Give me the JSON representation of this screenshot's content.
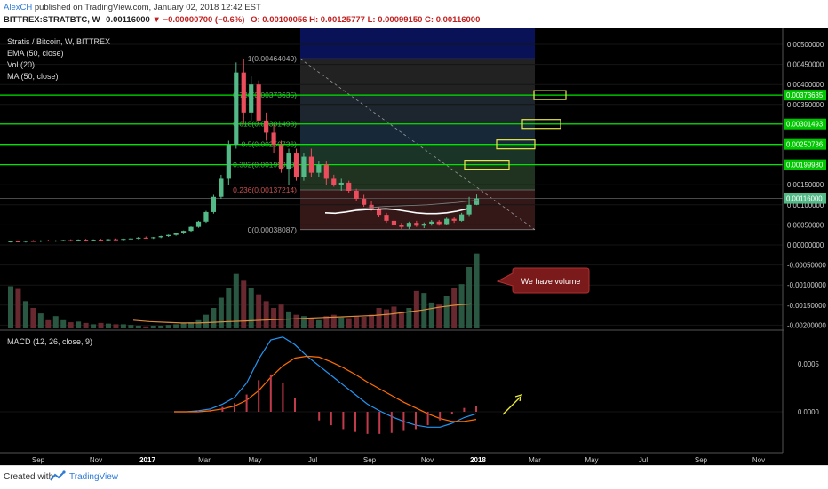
{
  "header": {
    "author": "AlexCH",
    "published": "published on TradingView.com, January 02, 2018 12:42 EST",
    "symbol": "BITTREX:STRATBTC, W",
    "last": "0.00116000",
    "change": "▼ −0.00000700 (−0.6%)",
    "ohlc": "O: 0.00100056  H: 0.00125777  L: 0.00099150  C: 0.00116000"
  },
  "legend": [
    "Stratis / Bitcoin, W, BITTREX",
    "EMA (50, close)",
    "Vol (20)",
    "MA (50, close)"
  ],
  "annotation": {
    "callout": "We have volume"
  },
  "footer": {
    "created_with": "Created with",
    "brand": "TradingView"
  },
  "colors": {
    "background": "#000000",
    "up": "#53b987",
    "down": "#eb4d5c",
    "fib_line": "#00e400",
    "fib_box": "#e8e84c",
    "macd": "#2196f3",
    "signal": "#ff6d00",
    "callout": "#7a1a1a"
  },
  "chart_data": [
    {
      "type": "candlestick",
      "title": "Stratis / Bitcoin, W, BITTREX",
      "x_ticks": [
        "Sep",
        "Nov",
        "2017",
        "Mar",
        "May",
        "Jul",
        "Sep",
        "Nov",
        "2018",
        "Mar",
        "May",
        "Jul",
        "Sep",
        "Nov"
      ],
      "y_ticks": [
        "0.00500000",
        "0.00450000",
        "0.00400000",
        "0.00350000",
        "0.00300000",
        "0.00250000",
        "0.00200000",
        "0.00150000",
        "0.00100000",
        "0.00050000",
        "0.00000000",
        "-0.00050000",
        "-0.00100000",
        "-0.00150000",
        "-0.00200000"
      ],
      "ylim": [
        -0.0021,
        0.0052
      ],
      "price_markers": [
        {
          "label": "0.00373635",
          "value": 0.00373635
        },
        {
          "label": "0.00301493",
          "value": 0.00301493
        },
        {
          "label": "0.00250736",
          "value": 0.00250736
        },
        {
          "label": "0.00199980",
          "value": 0.0019998
        },
        {
          "label": "0.00116000",
          "value": 0.00116
        }
      ],
      "fibonacci_levels": [
        {
          "label": "1(0.00464049)",
          "ratio": 1,
          "value": 0.00464049
        },
        {
          "label": "0.786(0.00373635)",
          "ratio": 0.786,
          "value": 0.00373635
        },
        {
          "label": "0.618(0.00301493)",
          "ratio": 0.618,
          "value": 0.00301493
        },
        {
          "label": "0.5(0.00250736)",
          "ratio": 0.5,
          "value": 0.00250736
        },
        {
          "label": "0.382(0.00199980)",
          "ratio": 0.382,
          "value": 0.0019998
        },
        {
          "label": "0.236(0.00137214)",
          "ratio": 0.236,
          "value": 0.00137214
        },
        {
          "label": "0(0.00038087)",
          "ratio": 0,
          "value": 0.00038087
        }
      ],
      "candles": [
        {
          "o": 8e-05,
          "h": 0.0001,
          "l": 6e-05,
          "c": 9e-05
        },
        {
          "o": 9e-05,
          "h": 0.00011,
          "l": 7e-05,
          "c": 8e-05
        },
        {
          "o": 8e-05,
          "h": 0.0001,
          "l": 6e-05,
          "c": 0.0001
        },
        {
          "o": 0.0001,
          "h": 0.00012,
          "l": 8e-05,
          "c": 9e-05
        },
        {
          "o": 9e-05,
          "h": 0.00012,
          "l": 7e-05,
          "c": 0.00011
        },
        {
          "o": 0.00011,
          "h": 0.00013,
          "l": 9e-05,
          "c": 0.0001
        },
        {
          "o": 0.0001,
          "h": 0.00012,
          "l": 8e-05,
          "c": 0.00011
        },
        {
          "o": 0.00011,
          "h": 0.00013,
          "l": 9e-05,
          "c": 0.00012
        },
        {
          "o": 0.00012,
          "h": 0.00014,
          "l": 0.0001,
          "c": 0.00011
        },
        {
          "o": 0.00011,
          "h": 0.00014,
          "l": 9e-05,
          "c": 0.00013
        },
        {
          "o": 0.00013,
          "h": 0.00015,
          "l": 0.00011,
          "c": 0.00012
        },
        {
          "o": 0.00012,
          "h": 0.00014,
          "l": 0.0001,
          "c": 0.00013
        },
        {
          "o": 0.00013,
          "h": 0.00015,
          "l": 0.00011,
          "c": 0.00012
        },
        {
          "o": 0.00012,
          "h": 0.00015,
          "l": 0.0001,
          "c": 0.00014
        },
        {
          "o": 0.00014,
          "h": 0.00016,
          "l": 0.00012,
          "c": 0.00013
        },
        {
          "o": 0.00013,
          "h": 0.00016,
          "l": 0.00011,
          "c": 0.00015
        },
        {
          "o": 0.00015,
          "h": 0.00018,
          "l": 0.00013,
          "c": 0.00016
        },
        {
          "o": 0.00016,
          "h": 0.0002,
          "l": 0.00014,
          "c": 0.00018
        },
        {
          "o": 0.00018,
          "h": 0.00021,
          "l": 0.00016,
          "c": 0.00017
        },
        {
          "o": 0.00017,
          "h": 0.0002,
          "l": 0.00015,
          "c": 0.00019
        },
        {
          "o": 0.00019,
          "h": 0.00023,
          "l": 0.00017,
          "c": 0.00022
        },
        {
          "o": 0.00022,
          "h": 0.00026,
          "l": 0.0002,
          "c": 0.00025
        },
        {
          "o": 0.00025,
          "h": 0.0003,
          "l": 0.00023,
          "c": 0.00029
        },
        {
          "o": 0.00029,
          "h": 0.00036,
          "l": 0.00027,
          "c": 0.00035
        },
        {
          "o": 0.00035,
          "h": 0.00046,
          "l": 0.00033,
          "c": 0.00045
        },
        {
          "o": 0.00045,
          "h": 0.0006,
          "l": 0.00043,
          "c": 0.00058
        },
        {
          "o": 0.00058,
          "h": 0.00085,
          "l": 0.00055,
          "c": 0.00082
        },
        {
          "o": 0.00082,
          "h": 0.00125,
          "l": 0.00078,
          "c": 0.0012
        },
        {
          "o": 0.0012,
          "h": 0.00175,
          "l": 0.00115,
          "c": 0.00165
        },
        {
          "o": 0.00165,
          "h": 0.0026,
          "l": 0.0015,
          "c": 0.0025
        },
        {
          "o": 0.0025,
          "h": 0.00455,
          "l": 0.0024,
          "c": 0.0043
        },
        {
          "o": 0.0043,
          "h": 0.00464,
          "l": 0.003,
          "c": 0.0033
        },
        {
          "o": 0.0033,
          "h": 0.0042,
          "l": 0.0031,
          "c": 0.004
        },
        {
          "o": 0.004,
          "h": 0.0041,
          "l": 0.003,
          "c": 0.0031
        },
        {
          "o": 0.0031,
          "h": 0.0033,
          "l": 0.0026,
          "c": 0.0028
        },
        {
          "o": 0.0028,
          "h": 0.003,
          "l": 0.0023,
          "c": 0.0025
        },
        {
          "o": 0.0025,
          "h": 0.0026,
          "l": 0.0018,
          "c": 0.0019
        },
        {
          "o": 0.0019,
          "h": 0.0024,
          "l": 0.0015,
          "c": 0.0023
        },
        {
          "o": 0.0023,
          "h": 0.0024,
          "l": 0.0016,
          "c": 0.0017
        },
        {
          "o": 0.0017,
          "h": 0.0023,
          "l": 0.0016,
          "c": 0.0022
        },
        {
          "o": 0.0022,
          "h": 0.0024,
          "l": 0.0017,
          "c": 0.0018
        },
        {
          "o": 0.0018,
          "h": 0.0021,
          "l": 0.0017,
          "c": 0.002
        },
        {
          "o": 0.002,
          "h": 0.0021,
          "l": 0.0015,
          "c": 0.00165
        },
        {
          "o": 0.00165,
          "h": 0.00175,
          "l": 0.00145,
          "c": 0.0015
        },
        {
          "o": 0.0015,
          "h": 0.00165,
          "l": 0.00135,
          "c": 0.00155
        },
        {
          "o": 0.00155,
          "h": 0.0016,
          "l": 0.0013,
          "c": 0.00135
        },
        {
          "o": 0.00135,
          "h": 0.0014,
          "l": 0.0011,
          "c": 0.00115
        },
        {
          "o": 0.00115,
          "h": 0.00125,
          "l": 0.00095,
          "c": 0.001
        },
        {
          "o": 0.001,
          "h": 0.0011,
          "l": 0.00085,
          "c": 0.0009
        },
        {
          "o": 0.0009,
          "h": 0.00095,
          "l": 0.0007,
          "c": 0.00075
        },
        {
          "o": 0.00075,
          "h": 0.0008,
          "l": 0.00055,
          "c": 0.0006
        },
        {
          "o": 0.0006,
          "h": 0.00065,
          "l": 0.00045,
          "c": 0.0005
        },
        {
          "o": 0.0005,
          "h": 0.00055,
          "l": 0.0004,
          "c": 0.00045
        },
        {
          "o": 0.00045,
          "h": 0.00058,
          "l": 0.0004,
          "c": 0.00055
        },
        {
          "o": 0.00055,
          "h": 0.0006,
          "l": 0.00045,
          "c": 0.00048
        },
        {
          "o": 0.00048,
          "h": 0.00056,
          "l": 0.00042,
          "c": 0.00053
        },
        {
          "o": 0.00053,
          "h": 0.00062,
          "l": 0.00048,
          "c": 0.00058
        },
        {
          "o": 0.00058,
          "h": 0.00062,
          "l": 0.00048,
          "c": 0.00052
        },
        {
          "o": 0.00052,
          "h": 0.00068,
          "l": 0.0005,
          "c": 0.00065
        },
        {
          "o": 0.00065,
          "h": 0.0007,
          "l": 0.00055,
          "c": 0.0006
        },
        {
          "o": 0.0006,
          "h": 0.0008,
          "l": 0.00058,
          "c": 0.00076
        },
        {
          "o": 0.00076,
          "h": 0.0012,
          "l": 0.00072,
          "c": 0.001
        },
        {
          "o": 0.00100056,
          "h": 0.00125777,
          "l": 0.0009915,
          "c": 0.00116
        }
      ],
      "ema_50": [
        0.0008,
        0.00079,
        0.00082,
        0.00086,
        0.00088,
        0.00089,
        0.0009,
        0.00088,
        0.00084,
        0.0008,
        0.00078,
        0.00078,
        0.0008,
        0.00084,
        0.0009
      ],
      "ma_50": [
        0.0009,
        0.00092,
        0.00094,
        0.00096,
        0.00097,
        0.00098,
        0.00099,
        0.001,
        0.00102,
        0.00104,
        0.00106,
        0.00109,
        0.00112
      ],
      "volume": [
        0.00062,
        0.00058,
        0.0004,
        0.0003,
        0.00022,
        0.00012,
        0.00018,
        0.00012,
        9e-05,
        0.0001,
        8e-05,
        6e-05,
        8e-05,
        7e-05,
        6e-05,
        6e-05,
        5e-05,
        4e-05,
        3e-05,
        4e-05,
        4e-05,
        5e-05,
        6e-05,
        8e-05,
        9e-05,
        0.00012,
        0.0002,
        0.0003,
        0.00045,
        0.0006,
        0.0008,
        0.0007,
        0.0006,
        0.0005,
        0.0004,
        0.0003,
        0.00035,
        0.00025,
        0.0002,
        0.00018,
        0.00015,
        0.00012,
        0.00018,
        0.0002,
        0.00016,
        0.00015,
        0.00018,
        0.00017,
        0.0002,
        0.0003,
        0.00028,
        0.00032,
        0.00025,
        0.0003,
        0.00055,
        0.00052,
        0.00038,
        0.00035,
        0.00048,
        0.0006,
        0.00065,
        0.0009,
        0.0011
      ],
      "volume_scale_max": 0.0012,
      "volume_ma_20": [
        0.00012,
        0.0001,
        9e-05,
        8e-05,
        8e-05,
        9e-05,
        0.0001,
        0.00011,
        0.00012,
        0.00013,
        0.00014,
        0.00015,
        0.00016,
        0.00017,
        0.00018,
        0.00019,
        0.00021,
        0.00024,
        0.00027,
        0.00031,
        0.00034,
        0.00036
      ]
    },
    {
      "type": "line",
      "title": "MACD (12, 26, close, 9)",
      "y_ticks": [
        "0.0005",
        "0.0000"
      ],
      "ylim": [
        -0.00045,
        0.00115
      ],
      "series": [
        {
          "values": [
            0,
            0,
            1e-05,
            3e-05,
            8e-05,
            0.00015,
            0.0003,
            0.00055,
            0.00075,
            0.00078,
            0.0007,
            0.00058,
            0.00048,
            0.00038,
            0.00028,
            0.00018,
            8e-05,
            1e-05,
            -5e-05,
            -0.0001,
            -0.00014,
            -0.00016,
            -0.00016,
            -0.00012,
            -6e-05,
            -2e-05
          ]
        },
        {
          "values": [
            0,
            0,
            0,
            1e-05,
            3e-05,
            6e-05,
            0.00012,
            0.00022,
            0.00036,
            0.00048,
            0.00056,
            0.00058,
            0.00057,
            0.00052,
            0.00046,
            0.00039,
            0.00031,
            0.00024,
            0.00017,
            0.0001,
            4e-05,
            -2e-05,
            -7e-05,
            -0.0001,
            -0.0001,
            -8e-05
          ]
        }
      ],
      "histogram": [
        0,
        0,
        1e-05,
        2e-05,
        5e-05,
        9e-05,
        0.00018,
        0.00033,
        0.00039,
        0.0003,
        0.00014,
        0.0,
        -9e-05,
        -0.00014,
        -0.00018,
        -0.00021,
        -0.00023,
        -0.00023,
        -0.00022,
        -0.0002,
        -0.00018,
        -0.00014,
        -9e-05,
        -2e-05,
        4e-05,
        6e-05
      ]
    }
  ]
}
